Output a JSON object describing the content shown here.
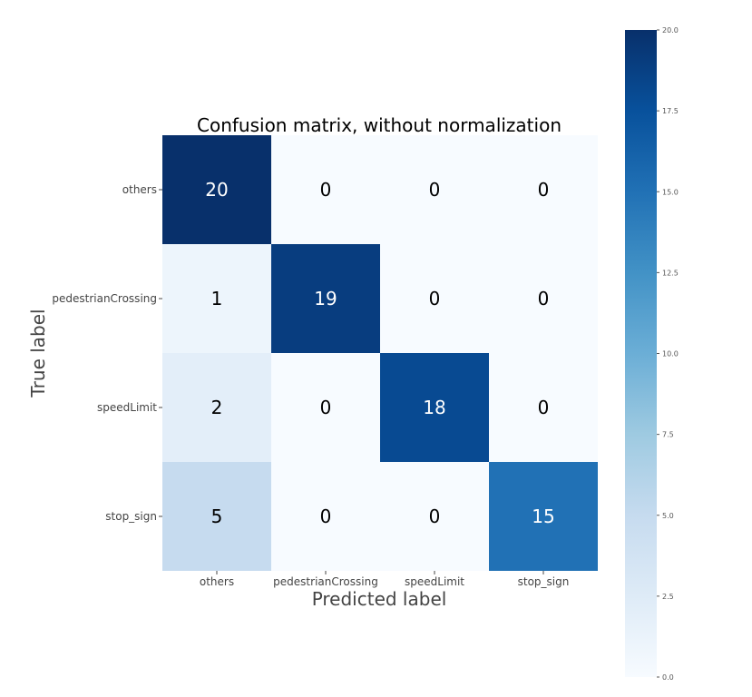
{
  "chart_data": {
    "type": "heatmap",
    "title": "Confusion matrix, without normalization",
    "xlabel": "Predicted label",
    "ylabel": "True label",
    "x_categories": [
      "others",
      "pedestrianCrossing",
      "speedLimit",
      "stop_sign"
    ],
    "y_categories": [
      "others",
      "pedestrianCrossing",
      "speedLimit",
      "stop_sign"
    ],
    "values": [
      [
        20,
        0,
        0,
        0
      ],
      [
        1,
        19,
        0,
        0
      ],
      [
        2,
        0,
        18,
        0
      ],
      [
        5,
        0,
        0,
        15
      ]
    ],
    "colorscale": "Blues",
    "color_range": [
      0,
      20
    ],
    "colorbar_ticks": [
      "0.0",
      "2.5",
      "5.0",
      "7.5",
      "10.0",
      "12.5",
      "15.0",
      "17.5",
      "20.0"
    ],
    "grid": false
  }
}
